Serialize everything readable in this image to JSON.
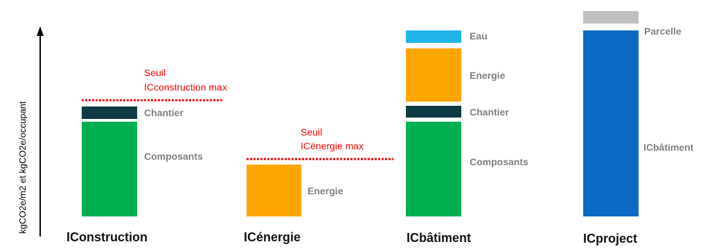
{
  "top_strip_text": "",
  "axis": {
    "ylabel": "kgCO2e/m2 et kgCO2e/occupant"
  },
  "colors": {
    "composants": "#00b050",
    "chantier": "#0e3b43",
    "energie": "#ffa500",
    "eau": "#1fb5ea",
    "icbatiment": "#0a6ac4",
    "parcelle": "#bfbfbf",
    "threshold": "#ff0000",
    "label_gray": "#7f7f7f",
    "title": "#111111"
  },
  "groups": {
    "iconstruction": {
      "title": "IConstruction",
      "threshold_label_line1": "Seuil",
      "threshold_label_line2": "ICconstruction max",
      "segments": [
        {
          "key": "chantier",
          "label": "Chantier"
        },
        {
          "key": "composants",
          "label": "Composants"
        }
      ]
    },
    "icenergie": {
      "title": "ICénergie",
      "threshold_label_line1": "Seuil",
      "threshold_label_line2": "ICénergie max",
      "segments": [
        {
          "key": "energie",
          "label": "Energie"
        }
      ]
    },
    "icbatiment": {
      "title": "ICbâtiment",
      "segments": [
        {
          "key": "eau",
          "label": "Eau"
        },
        {
          "key": "energie",
          "label": "Energie"
        },
        {
          "key": "chantier",
          "label": "Chantier"
        },
        {
          "key": "composants",
          "label": "Composants"
        }
      ]
    },
    "icproject": {
      "title": "ICproject",
      "segments": [
        {
          "key": "parcelle",
          "label": "Parcelle"
        },
        {
          "key": "icbatiment",
          "label": "ICbâtiment"
        }
      ]
    }
  }
}
